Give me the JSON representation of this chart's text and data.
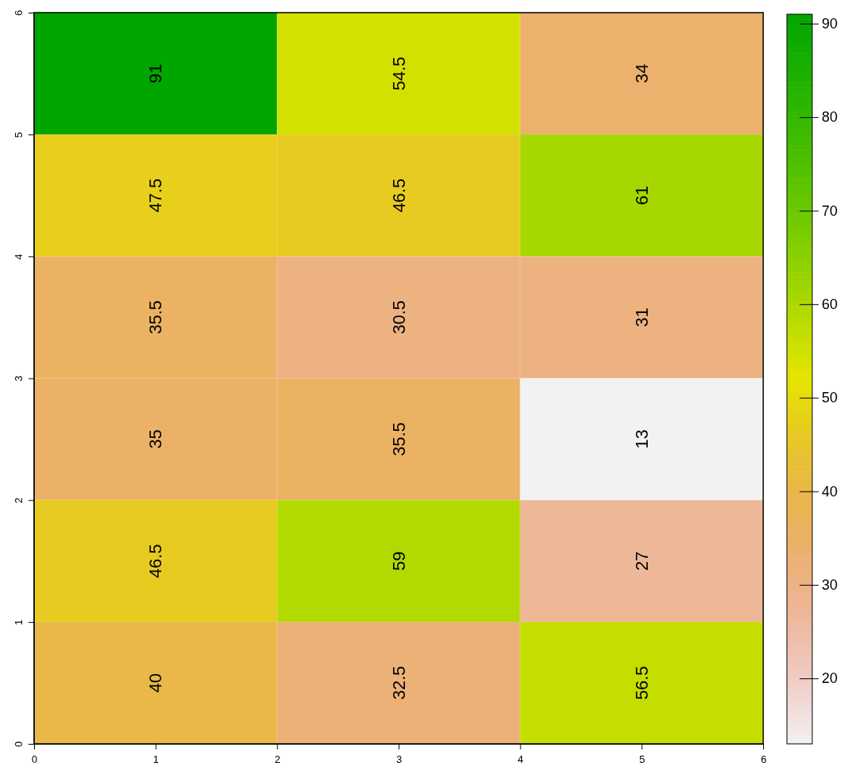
{
  "chart_data": {
    "type": "heatmap",
    "xlim": [
      0,
      6
    ],
    "xticks": [
      0,
      1,
      2,
      3,
      4,
      5,
      6
    ],
    "ylim": [
      0,
      6
    ],
    "yticks": [
      0,
      1,
      2,
      3,
      4,
      5,
      6
    ],
    "cells": [
      [
        91,
        54.5,
        34
      ],
      [
        47.5,
        46.5,
        61
      ],
      [
        35.5,
        30.5,
        31
      ],
      [
        35,
        35.5,
        13
      ],
      [
        46.5,
        59,
        27
      ],
      [
        40,
        32.5,
        56.5
      ]
    ],
    "data_labels": true,
    "clim": [
      13,
      91
    ],
    "cticks": [
      20,
      30,
      40,
      50,
      60,
      70,
      80,
      90
    ]
  }
}
